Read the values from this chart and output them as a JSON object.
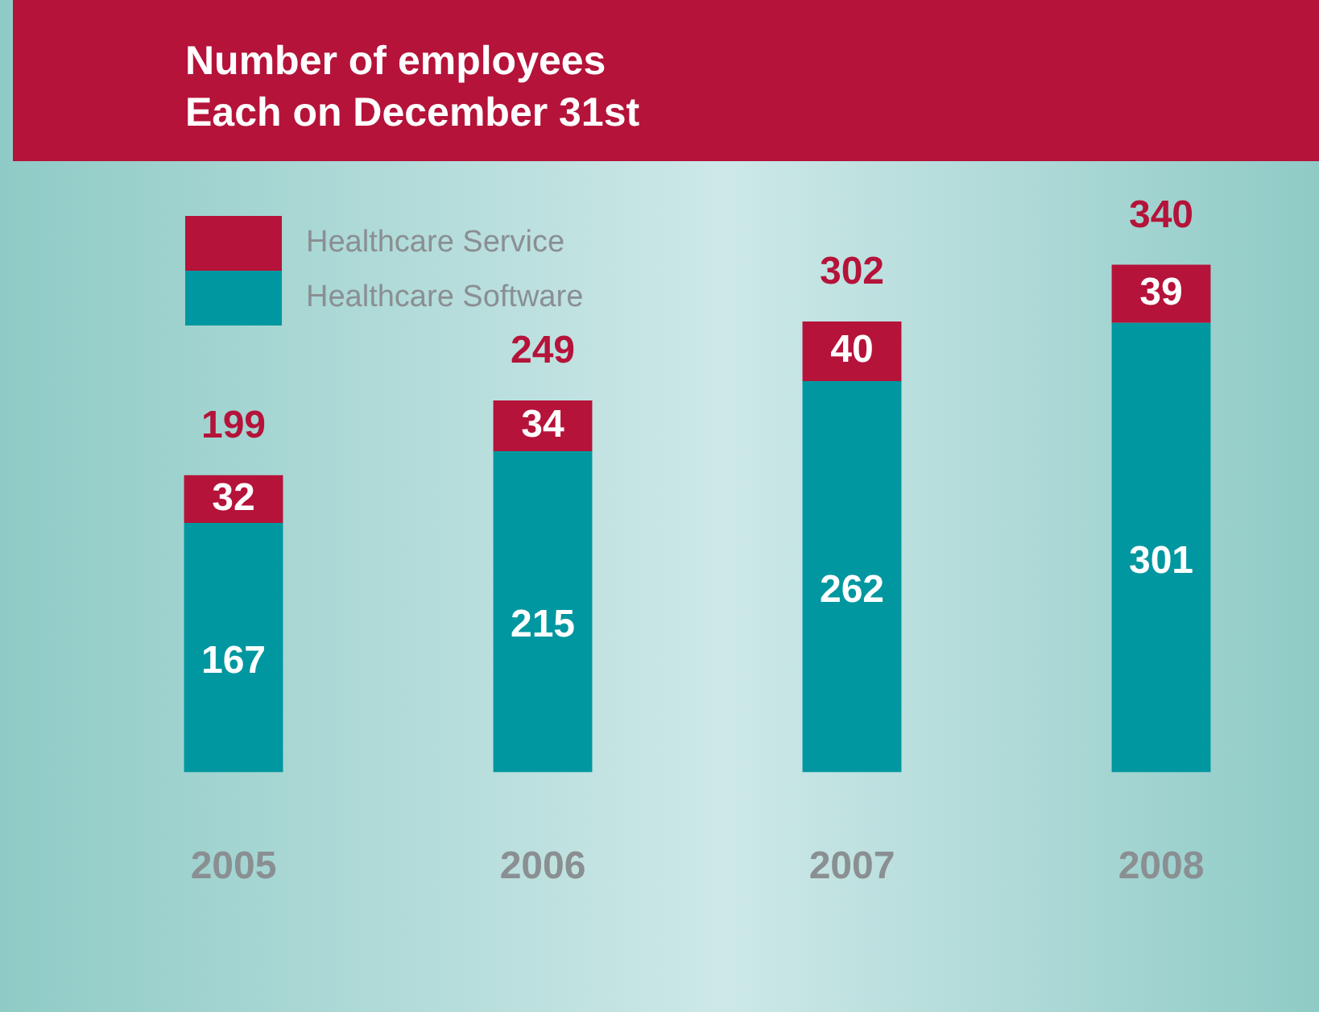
{
  "chart_data": {
    "type": "bar",
    "title": "Number of employees\nEach on December 31st",
    "categories": [
      "2005",
      "2006",
      "2007",
      "2008"
    ],
    "stacked": true,
    "series": [
      {
        "name": "Healthcare Software",
        "color": "#0097a0",
        "values": [
          167,
          215,
          262,
          301
        ]
      },
      {
        "name": "Healthcare Service",
        "color": "#b5133a",
        "values": [
          32,
          34,
          40,
          39
        ]
      }
    ],
    "totals": [
      "199",
      "249",
      "302",
      "340"
    ],
    "data_labels": true,
    "legend": "top left",
    "grid": false,
    "tick_labels": "x"
  }
}
